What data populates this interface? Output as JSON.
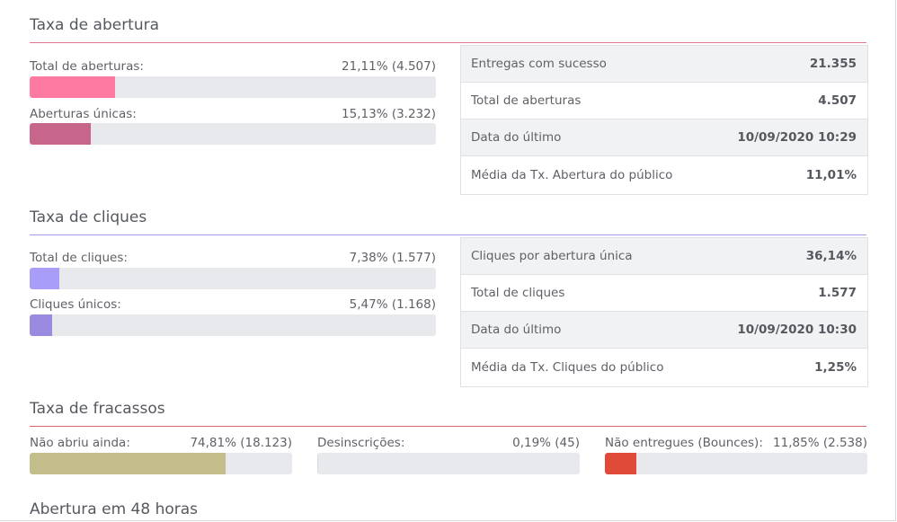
{
  "open_rate": {
    "title": "Taxa de abertura",
    "accent": "#e0768f",
    "metrics": [
      {
        "label": "Total de aberturas:",
        "value": "21,11% (4.507)",
        "fraction": 0.2111,
        "color": "#ff7aa3"
      },
      {
        "label": "Aberturas únicas:",
        "value": "15,13% (3.232)",
        "fraction": 0.1513,
        "color": "#c7658a"
      }
    ],
    "table": [
      {
        "label": "Entregas com sucesso",
        "value": "21.355"
      },
      {
        "label": "Total de aberturas",
        "value": "4.507"
      },
      {
        "label": "Data do último",
        "value": "10/09/2020 10:29"
      },
      {
        "label": "Média da Tx. Abertura do público",
        "value": "11,01%"
      }
    ]
  },
  "click_rate": {
    "title": "Taxa de cliques",
    "accent": "#9e9be6",
    "metrics": [
      {
        "label": "Total de cliques:",
        "value": "7,38% (1.577)",
        "fraction": 0.0738,
        "color": "#a89ef9"
      },
      {
        "label": "Cliques únicos:",
        "value": "5,47% (1.168)",
        "fraction": 0.0547,
        "color": "#9a8be0"
      }
    ],
    "table": [
      {
        "label": "Cliques por abertura única",
        "value": "36,14%"
      },
      {
        "label": "Total de cliques",
        "value": "1.577"
      },
      {
        "label": "Data do último",
        "value": "10/09/2020 10:30"
      },
      {
        "label": "Média da Tx. Cliques do público",
        "value": "1,25%"
      }
    ]
  },
  "failure_rate": {
    "title": "Taxa de fracassos",
    "accent": "#d66a6a",
    "metrics": [
      {
        "label": "Não abriu ainda:",
        "value": "74,81% (18.123)",
        "fraction": 0.7481,
        "color": "#c4bd8c"
      },
      {
        "label": "Desinscrições:",
        "value": "0,19% (45)",
        "fraction": 0.0019,
        "color": "#d9dbdf"
      },
      {
        "label": "Não entregues (Bounces):",
        "value": "11,85% (2.538)",
        "fraction": 0.1185,
        "color": "#e04a39"
      }
    ]
  },
  "opens_48h": {
    "title": "Abertura em 48 horas"
  }
}
